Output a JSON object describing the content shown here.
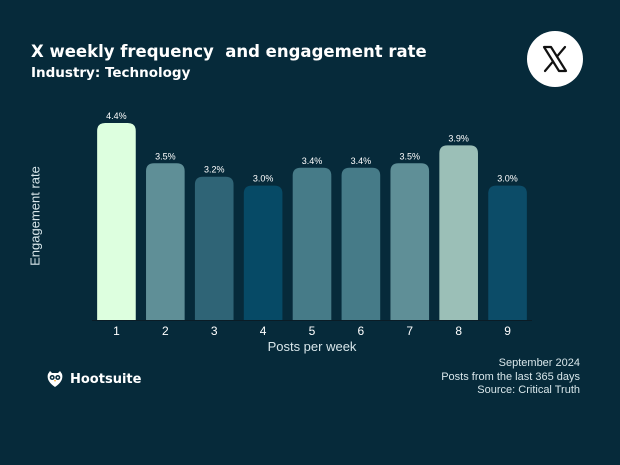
{
  "header": {
    "title": "X weekly frequency  and engagement rate",
    "subtitle": "Industry: Technology"
  },
  "logo": {
    "icon": "x-logo-icon"
  },
  "chart_data": {
    "type": "bar",
    "categories": [
      "1",
      "2",
      "3",
      "4",
      "5",
      "6",
      "7",
      "8",
      "9"
    ],
    "values": [
      4.4,
      3.5,
      3.2,
      3.0,
      3.4,
      3.4,
      3.5,
      3.9,
      3.0
    ],
    "data_labels": [
      "4.4%",
      "3.5%",
      "3.2%",
      "3.0%",
      "3.4%",
      "3.4%",
      "3.5%",
      "3.9%",
      "3.0%"
    ],
    "bar_colors": [
      "#ddffdf",
      "#5f8f97",
      "#2f6476",
      "#064a66",
      "#467b88",
      "#467b88",
      "#5f8f97",
      "#9bbfb7",
      "#0c4c68"
    ],
    "xlabel": "Posts per week",
    "ylabel": "Engagement rate",
    "ylim": [
      0,
      4.4
    ],
    "grid": false,
    "legend": "none"
  },
  "footer": {
    "date": "September 2024",
    "scope": "Posts from the last 365 days",
    "source": "Source: Critical Truth"
  },
  "brand": {
    "name": "Hootsuite",
    "icon": "owl-logo-icon"
  },
  "colors": {
    "background": "#062a3a",
    "text": "#ffffff",
    "axis": "#0a1c26"
  }
}
